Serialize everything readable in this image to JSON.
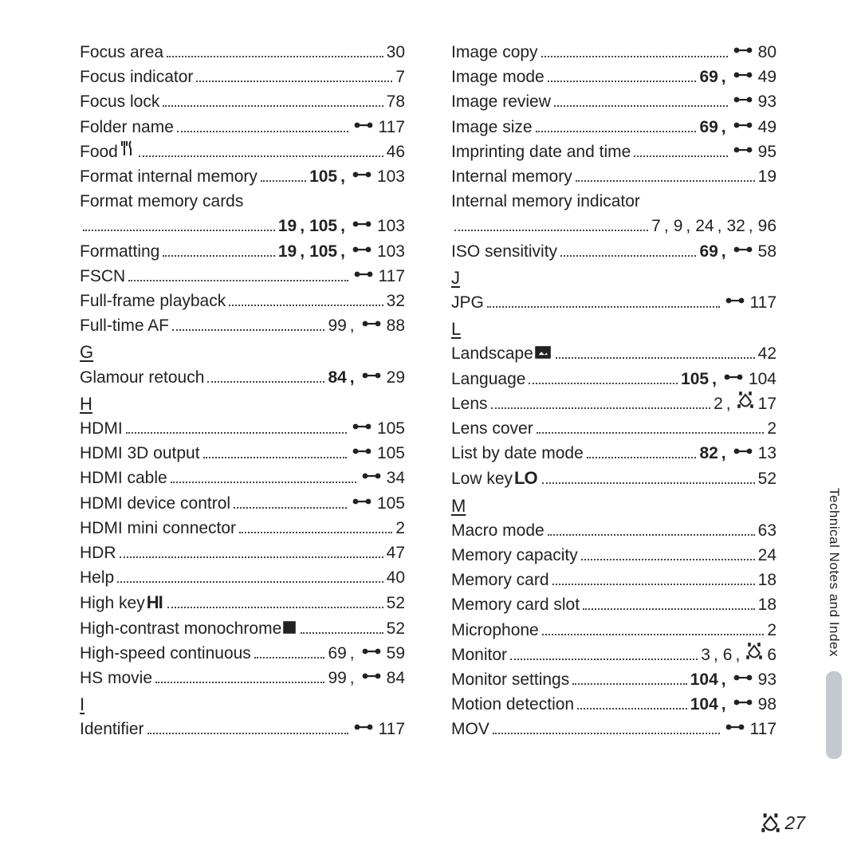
{
  "icons": {
    "ref_prefix": "E",
    "tech_prefix": "F"
  },
  "sideLabel": "Technical Notes and Index",
  "footer": {
    "icon": "tech",
    "page": "27"
  },
  "sections": [
    {
      "col": 0,
      "letter": null,
      "rows": [
        {
          "term": [
            {
              "t": "Focus area"
            }
          ],
          "pages": [
            {
              "n": "30"
            }
          ]
        },
        {
          "term": [
            {
              "t": "Focus indicator"
            }
          ],
          "pages": [
            {
              "n": "7"
            }
          ]
        },
        {
          "term": [
            {
              "t": "Focus lock"
            }
          ],
          "pages": [
            {
              "n": "78"
            }
          ]
        },
        {
          "term": [
            {
              "t": "Folder name"
            }
          ],
          "pages": [
            {
              "i": "ref",
              "n": "117"
            }
          ]
        },
        {
          "term": [
            {
              "t": "Food "
            },
            {
              "icon": "food"
            }
          ],
          "pages": [
            {
              "n": "46"
            }
          ]
        },
        {
          "term": [
            {
              "t": "Format internal memory"
            }
          ],
          "pages": [
            {
              "n": "105",
              "b": true
            },
            {
              "i": "ref",
              "n": "103"
            }
          ]
        },
        {
          "term": [
            {
              "t": "Format memory cards"
            }
          ],
          "pages": []
        },
        {
          "cont": true,
          "term": [],
          "pages": [
            {
              "n": "19",
              "b": true
            },
            {
              "n": "105",
              "b": true
            },
            {
              "i": "ref",
              "n": "103"
            }
          ]
        },
        {
          "term": [
            {
              "t": "Formatting"
            }
          ],
          "pages": [
            {
              "n": "19",
              "b": true
            },
            {
              "n": "105",
              "b": true
            },
            {
              "i": "ref",
              "n": "103"
            }
          ]
        },
        {
          "term": [
            {
              "t": "FSCN"
            }
          ],
          "pages": [
            {
              "i": "ref",
              "n": "117"
            }
          ]
        },
        {
          "term": [
            {
              "t": "Full-frame playback"
            }
          ],
          "pages": [
            {
              "n": "32"
            }
          ]
        },
        {
          "term": [
            {
              "t": "Full-time AF"
            }
          ],
          "pages": [
            {
              "n": "99"
            },
            {
              "i": "ref",
              "n": "88"
            }
          ]
        }
      ]
    },
    {
      "col": 0,
      "letter": "G",
      "rows": [
        {
          "term": [
            {
              "t": "Glamour retouch"
            }
          ],
          "pages": [
            {
              "n": "84",
              "b": true
            },
            {
              "i": "ref",
              "n": "29"
            }
          ]
        }
      ]
    },
    {
      "col": 0,
      "letter": "H",
      "rows": [
        {
          "term": [
            {
              "t": "HDMI"
            }
          ],
          "pages": [
            {
              "i": "ref",
              "n": "105"
            }
          ]
        },
        {
          "term": [
            {
              "t": "HDMI 3D output"
            }
          ],
          "pages": [
            {
              "i": "ref",
              "n": "105"
            }
          ]
        },
        {
          "term": [
            {
              "t": "HDMI cable"
            }
          ],
          "pages": [
            {
              "i": "ref",
              "n": "34"
            }
          ]
        },
        {
          "term": [
            {
              "t": "HDMI device control"
            }
          ],
          "pages": [
            {
              "i": "ref",
              "n": "105"
            }
          ]
        },
        {
          "term": [
            {
              "t": "HDMI mini connector"
            }
          ],
          "pages": [
            {
              "n": "2"
            }
          ]
        },
        {
          "term": [
            {
              "t": "HDR"
            }
          ],
          "pages": [
            {
              "n": "47"
            }
          ]
        },
        {
          "term": [
            {
              "t": "Help"
            }
          ],
          "pages": [
            {
              "n": "40"
            }
          ]
        },
        {
          "term": [
            {
              "t": "High key "
            },
            {
              "icon": "highkey"
            }
          ],
          "pages": [
            {
              "n": "52"
            }
          ]
        },
        {
          "term": [
            {
              "t": "High-contrast monochrome "
            },
            {
              "icon": "mono"
            }
          ],
          "pages": [
            {
              "n": "52"
            }
          ]
        },
        {
          "term": [
            {
              "t": "High-speed continuous"
            }
          ],
          "pages": [
            {
              "n": "69"
            },
            {
              "i": "ref",
              "n": "59"
            }
          ]
        },
        {
          "term": [
            {
              "t": "HS movie"
            }
          ],
          "pages": [
            {
              "n": "99"
            },
            {
              "i": "ref",
              "n": "84"
            }
          ]
        }
      ]
    },
    {
      "col": 0,
      "letter": "I",
      "rows": [
        {
          "term": [
            {
              "t": "Identifier"
            }
          ],
          "pages": [
            {
              "i": "ref",
              "n": "117"
            }
          ]
        }
      ]
    },
    {
      "col": 1,
      "letter": null,
      "rows": [
        {
          "term": [
            {
              "t": "Image copy"
            }
          ],
          "pages": [
            {
              "i": "ref",
              "n": "80"
            }
          ]
        },
        {
          "term": [
            {
              "t": "Image mode"
            }
          ],
          "pages": [
            {
              "n": "69",
              "b": true
            },
            {
              "i": "ref",
              "n": "49"
            }
          ]
        },
        {
          "term": [
            {
              "t": "Image review"
            }
          ],
          "pages": [
            {
              "i": "ref",
              "n": "93"
            }
          ]
        },
        {
          "term": [
            {
              "t": "Image size"
            }
          ],
          "pages": [
            {
              "n": "69",
              "b": true
            },
            {
              "i": "ref",
              "n": "49"
            }
          ]
        },
        {
          "term": [
            {
              "t": "Imprinting date and time"
            }
          ],
          "pages": [
            {
              "i": "ref",
              "n": "95"
            }
          ]
        },
        {
          "term": [
            {
              "t": "Internal memory"
            }
          ],
          "pages": [
            {
              "n": "19"
            }
          ]
        },
        {
          "term": [
            {
              "t": "Internal memory indicator"
            }
          ],
          "pages": []
        },
        {
          "cont": true,
          "term": [],
          "pages": [
            {
              "n": "7"
            },
            {
              "n": "9"
            },
            {
              "n": "24"
            },
            {
              "n": "32"
            },
            {
              "n": "96"
            }
          ]
        },
        {
          "term": [
            {
              "t": "ISO sensitivity"
            }
          ],
          "pages": [
            {
              "n": "69",
              "b": true
            },
            {
              "i": "ref",
              "n": "58"
            }
          ]
        }
      ]
    },
    {
      "col": 1,
      "letter": "J",
      "rows": [
        {
          "term": [
            {
              "t": "JPG"
            }
          ],
          "pages": [
            {
              "i": "ref",
              "n": "117"
            }
          ]
        }
      ]
    },
    {
      "col": 1,
      "letter": "L",
      "rows": [
        {
          "term": [
            {
              "t": "Landscape "
            },
            {
              "icon": "landscape"
            }
          ],
          "pages": [
            {
              "n": "42"
            }
          ]
        },
        {
          "term": [
            {
              "t": "Language"
            }
          ],
          "pages": [
            {
              "n": "105",
              "b": true
            },
            {
              "i": "ref",
              "n": "104"
            }
          ]
        },
        {
          "term": [
            {
              "t": "Lens"
            }
          ],
          "pages": [
            {
              "n": "2"
            },
            {
              "i": "tech",
              "n": "17"
            }
          ]
        },
        {
          "term": [
            {
              "t": "Lens cover"
            }
          ],
          "pages": [
            {
              "n": "2"
            }
          ]
        },
        {
          "term": [
            {
              "t": "List by date mode"
            }
          ],
          "pages": [
            {
              "n": "82",
              "b": true
            },
            {
              "i": "ref",
              "n": "13"
            }
          ]
        },
        {
          "term": [
            {
              "t": "Low key "
            },
            {
              "icon": "lowkey"
            }
          ],
          "pages": [
            {
              "n": "52"
            }
          ]
        }
      ]
    },
    {
      "col": 1,
      "letter": "M",
      "rows": [
        {
          "term": [
            {
              "t": "Macro mode"
            }
          ],
          "pages": [
            {
              "n": "63"
            }
          ]
        },
        {
          "term": [
            {
              "t": "Memory capacity"
            }
          ],
          "pages": [
            {
              "n": "24"
            }
          ]
        },
        {
          "term": [
            {
              "t": "Memory card"
            }
          ],
          "pages": [
            {
              "n": "18"
            }
          ]
        },
        {
          "term": [
            {
              "t": "Memory card slot"
            }
          ],
          "pages": [
            {
              "n": "18"
            }
          ]
        },
        {
          "term": [
            {
              "t": "Microphone"
            }
          ],
          "pages": [
            {
              "n": "2"
            }
          ]
        },
        {
          "term": [
            {
              "t": "Monitor"
            }
          ],
          "pages": [
            {
              "n": "3"
            },
            {
              "n": "6"
            },
            {
              "i": "tech",
              "n": "6"
            }
          ]
        },
        {
          "term": [
            {
              "t": "Monitor settings"
            }
          ],
          "pages": [
            {
              "n": "104",
              "b": true
            },
            {
              "i": "ref",
              "n": "93"
            }
          ]
        },
        {
          "term": [
            {
              "t": "Motion detection"
            }
          ],
          "pages": [
            {
              "n": "104",
              "b": true
            },
            {
              "i": "ref",
              "n": "98"
            }
          ]
        },
        {
          "term": [
            {
              "t": "MOV"
            }
          ],
          "pages": [
            {
              "i": "ref",
              "n": "117"
            }
          ]
        }
      ]
    }
  ]
}
